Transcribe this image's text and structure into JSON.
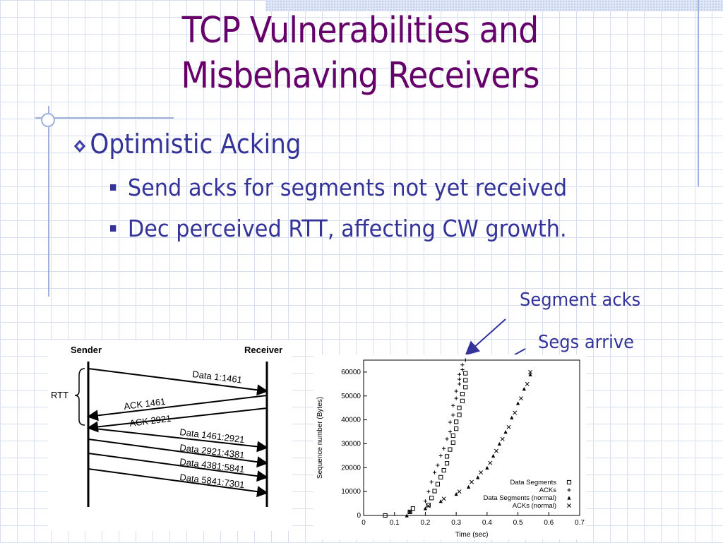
{
  "slide": {
    "title_line1": "TCP Vulnerabilities and",
    "title_line2": "Misbehaving Receivers",
    "bullet": "Optimistic Acking",
    "subbullets": [
      "Send acks for segments not yet received",
      "Dec perceived RTT, affecting CW growth."
    ],
    "annotations": {
      "segment_acks": "Segment acks",
      "segs_arrive": "Segs arrive"
    }
  },
  "diagram": {
    "sender_label": "Sender",
    "receiver_label": "Receiver",
    "rtt_label": "RTT",
    "messages": [
      {
        "label": "Data 1:1461",
        "direction": "to-receiver"
      },
      {
        "label": "ACK 1461",
        "direction": "to-sender"
      },
      {
        "label": "ACK 2921",
        "direction": "to-sender"
      },
      {
        "label": "Data 1461:2921",
        "direction": "to-receiver"
      },
      {
        "label": "Data 2921:4381",
        "direction": "to-receiver"
      },
      {
        "label": "Data 4381:5841",
        "direction": "to-receiver"
      },
      {
        "label": "Data 5841:7301",
        "direction": "to-receiver"
      }
    ]
  },
  "chart_data": {
    "type": "scatter",
    "title": "",
    "xlabel": "Time (sec)",
    "ylabel": "Sequence number (Bytes)",
    "xlim": [
      0,
      0.7
    ],
    "ylim": [
      0,
      65000
    ],
    "xticks": [
      0,
      0.1,
      0.2,
      0.3,
      0.4,
      0.5,
      0.6,
      0.7
    ],
    "yticks": [
      0,
      10000,
      20000,
      30000,
      40000,
      50000,
      60000
    ],
    "xtick_labels": [
      "0",
      "0.1",
      "0.2",
      "0.3",
      "0.4",
      "0.5",
      "0.6",
      "0.7"
    ],
    "ytick_labels": [
      "0",
      "10000",
      "20000",
      "30000",
      "40000",
      "50000",
      "60000"
    ],
    "legend_position": "bottom-right",
    "series": [
      {
        "name": "Data Segments",
        "marker": "square",
        "x": [
          0.07,
          0.15,
          0.16,
          0.21,
          0.22,
          0.23,
          0.24,
          0.25,
          0.26,
          0.27,
          0.27,
          0.28,
          0.29,
          0.29,
          0.3,
          0.3,
          0.31,
          0.31,
          0.32,
          0.32,
          0.33,
          0.33,
          0.33
        ],
        "y": [
          0,
          1500,
          2900,
          4400,
          7300,
          10200,
          13100,
          16000,
          18900,
          21800,
          24700,
          27600,
          30500,
          33400,
          36300,
          39200,
          42100,
          45000,
          47900,
          50800,
          53700,
          56600,
          59500
        ]
      },
      {
        "name": "ACKs",
        "marker": "plus",
        "x": [
          0.15,
          0.2,
          0.21,
          0.22,
          0.23,
          0.24,
          0.25,
          0.26,
          0.27,
          0.28,
          0.28,
          0.29,
          0.29,
          0.3,
          0.3,
          0.31,
          0.31,
          0.31,
          0.32,
          0.32,
          0.33
        ],
        "y": [
          1500,
          6000,
          10000,
          14000,
          18000,
          21000,
          25000,
          28000,
          32000,
          35000,
          39000,
          42000,
          46000,
          49000,
          52000,
          55000,
          57000,
          59000,
          61000,
          63000,
          66000
        ]
      },
      {
        "name": "Data Segments (normal)",
        "marker": "triangle",
        "x": [
          0.14,
          0.2,
          0.25,
          0.3,
          0.34,
          0.37,
          0.4,
          0.42,
          0.44,
          0.46,
          0.48,
          0.5,
          0.52,
          0.54
        ],
        "y": [
          0,
          3000,
          6000,
          9000,
          12000,
          16000,
          20000,
          25000,
          30000,
          35000,
          41000,
          47000,
          53000,
          59000
        ]
      },
      {
        "name": "ACKs (normal)",
        "marker": "x",
        "x": [
          0.15,
          0.21,
          0.26,
          0.31,
          0.35,
          0.38,
          0.41,
          0.43,
          0.45,
          0.47,
          0.49,
          0.51,
          0.53,
          0.54
        ],
        "y": [
          1500,
          4000,
          7000,
          10000,
          14000,
          18000,
          22000,
          27000,
          32000,
          37000,
          43000,
          49000,
          55000,
          60000
        ]
      }
    ]
  }
}
